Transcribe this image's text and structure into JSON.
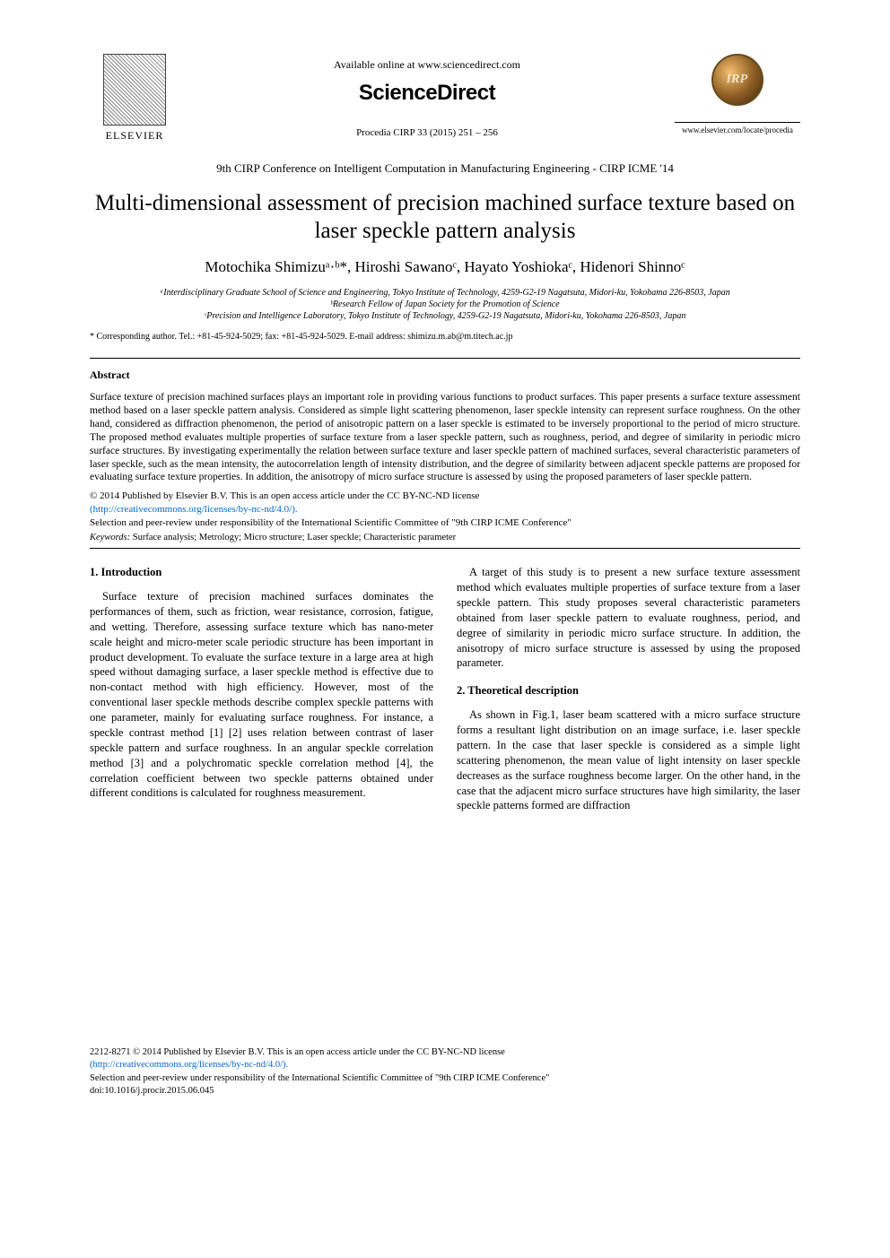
{
  "header": {
    "available_online": "Available online at www.sciencedirect.com",
    "sciencedirect": "ScienceDirect",
    "procedia_citation": "Procedia CIRP 33 (2015) 251 – 256",
    "elsevier_label": "ELSEVIER",
    "cirp_logo_text": "IRP",
    "procedia_url": "www.elsevier.com/locate/procedia"
  },
  "conference_line": "9th CIRP Conference on Intelligent Computation in Manufacturing Engineering - CIRP ICME '14",
  "title": "Multi-dimensional assessment of precision machined surface texture based on laser speckle pattern analysis",
  "authors_line": "Motochika Shimizuᵃ·ᵇ*, Hiroshi Sawanoᶜ, Hayato Yoshiokaᶜ, Hidenori Shinnoᶜ",
  "affiliations": {
    "a": "ᵃInterdisciplinary Graduate School of Science and Engineering, Tokyo Institute of Technology, 4259-G2-19 Nagatsuta, Midori-ku, Yokohama 226-8503, Japan",
    "b": "ᵇResearch Fellow of Japan Society for the Promotion of Science",
    "c": "ᶜPrecision and Intelligence Laboratory, Tokyo Institute of Technology, 4259-G2-19 Nagatsuta, Midori-ku, Yokohama 226-8503, Japan"
  },
  "corresponding": "* Corresponding author. Tel.: +81-45-924-5029; fax: +81-45-924-5029. E-mail address: shimizu.m.ab@m.titech.ac.jp",
  "abstract": {
    "heading": "Abstract",
    "body": "Surface texture of precision machined surfaces plays an important role in providing various functions to product surfaces. This paper presents a surface texture assessment method based on a laser speckle pattern analysis. Considered as simple light scattering phenomenon, laser speckle intensity can represent surface roughness. On the other hand, considered as diffraction phenomenon, the period of anisotropic pattern on a laser speckle is estimated to be inversely proportional to the period of micro structure. The proposed method evaluates multiple properties of surface texture from a laser speckle pattern, such as roughness, period, and degree of similarity in periodic micro surface structures. By investigating experimentally the relation between surface texture and laser speckle pattern of machined surfaces, several characteristic parameters of laser speckle, such as the mean intensity, the autocorrelation length of intensity distribution, and the degree of similarity between adjacent speckle patterns are proposed for evaluating surface texture properties. In addition, the anisotropy of micro surface structure is assessed by using the proposed parameters of laser speckle pattern."
  },
  "copyright": {
    "line1": "© 2014 Published by Elsevier B.V. This is an open access article under the CC BY-NC-ND license",
    "license_link": "(http://creativecommons.org/licenses/by-nc-nd/4.0/).",
    "line2": "Selection and peer-review under responsibility of the International Scientific Committee of \"9th CIRP ICME Conference\""
  },
  "keywords": {
    "label": "Keywords:",
    "text": " Surface analysis; Metrology; Micro structure; Laser speckle; Characteristic parameter"
  },
  "sections": {
    "intro_head": "1. Introduction",
    "intro_p1": "Surface texture of precision machined surfaces dominates the performances of them, such as friction, wear resistance, corrosion, fatigue, and wetting. Therefore, assessing surface texture which has nano-meter scale height and micro-meter scale periodic structure has been important in product development. To evaluate the surface texture in a large area at high speed without damaging surface, a laser speckle method is effective due to non-contact method with high efficiency. However, most of the conventional laser speckle methods describe complex speckle patterns with one parameter, mainly for evaluating surface roughness. For instance, a speckle contrast method [1] [2] uses relation between contrast of laser speckle pattern and surface roughness. In an angular speckle correlation method [3] and a polychromatic speckle correlation method [4], the correlation coefficient between two speckle patterns obtained under different conditions is calculated for roughness measurement.",
    "right_p1": "A target of this study is to present a new surface texture assessment method which evaluates multiple properties of surface texture from a laser speckle pattern. This study proposes several characteristic parameters obtained from laser speckle pattern to evaluate roughness, period, and degree of similarity in periodic micro surface structure. In addition, the anisotropy of micro surface structure is assessed by using the proposed parameter.",
    "theo_head": "2. Theoretical description",
    "theo_p1": "As shown in Fig.1, laser beam scattered with a micro surface structure forms a resultant light distribution on an image surface, i.e. laser speckle pattern. In the case that laser speckle is considered as a simple light scattering phenomenon, the mean value of light intensity on laser speckle decreases as the surface roughness become larger. On the other hand, in the case that the adjacent micro surface structures have high similarity, the laser speckle patterns formed are diffraction"
  },
  "footer": {
    "issn_line": "2212-8271 © 2014 Published by Elsevier B.V. This is an open access article under the CC BY-NC-ND license",
    "license_link": "(http://creativecommons.org/licenses/by-nc-nd/4.0/).",
    "peer_review": "Selection and peer-review under responsibility of the International Scientific Committee of \"9th CIRP ICME Conference\"",
    "doi": "doi:10.1016/j.procir.2015.06.045"
  },
  "colors": {
    "link": "#0066cc",
    "text": "#000000",
    "bg": "#ffffff"
  },
  "fonts": {
    "body_family": "Times New Roman",
    "body_size_pt": 10,
    "title_size_pt": 19,
    "authors_size_pt": 13,
    "sciencedirect_family": "Arial"
  }
}
